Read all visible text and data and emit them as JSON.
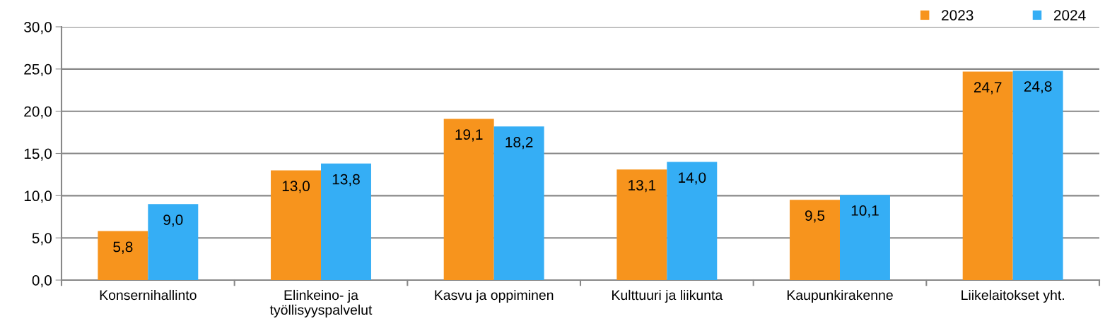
{
  "chart_data": {
    "type": "bar",
    "categories": [
      "Konsernihallinto",
      "Elinkeino- ja\ntyöllisyyspalvelut",
      "Kasvu ja oppiminen",
      "Kulttuuri ja liikunta",
      "Kaupunkirakenne",
      "Liikelaitokset yht."
    ],
    "series": [
      {
        "name": "2023",
        "color": "#f7941d",
        "values": [
          5.8,
          13.0,
          19.1,
          13.1,
          9.5,
          24.7
        ],
        "value_labels": [
          "5,8",
          "13,0",
          "19,1",
          "13,1",
          "9,5",
          "24,7"
        ]
      },
      {
        "name": "2024",
        "color": "#35aef5",
        "values": [
          9.0,
          13.8,
          18.2,
          14.0,
          10.1,
          24.8
        ],
        "value_labels": [
          "9,0",
          "13,8",
          "18,2",
          "14,0",
          "10,1",
          "24,8"
        ]
      }
    ],
    "ylim": [
      0,
      30
    ],
    "yticks": [
      {
        "value": 0,
        "label": "0,0"
      },
      {
        "value": 5,
        "label": "5,0"
      },
      {
        "value": 10,
        "label": "10,0"
      },
      {
        "value": 15,
        "label": "15,0"
      },
      {
        "value": 20,
        "label": "20,0"
      },
      {
        "value": 25,
        "label": "25,0"
      },
      {
        "value": 30,
        "label": "30,0"
      }
    ],
    "grid": "y",
    "legend": "top right"
  }
}
